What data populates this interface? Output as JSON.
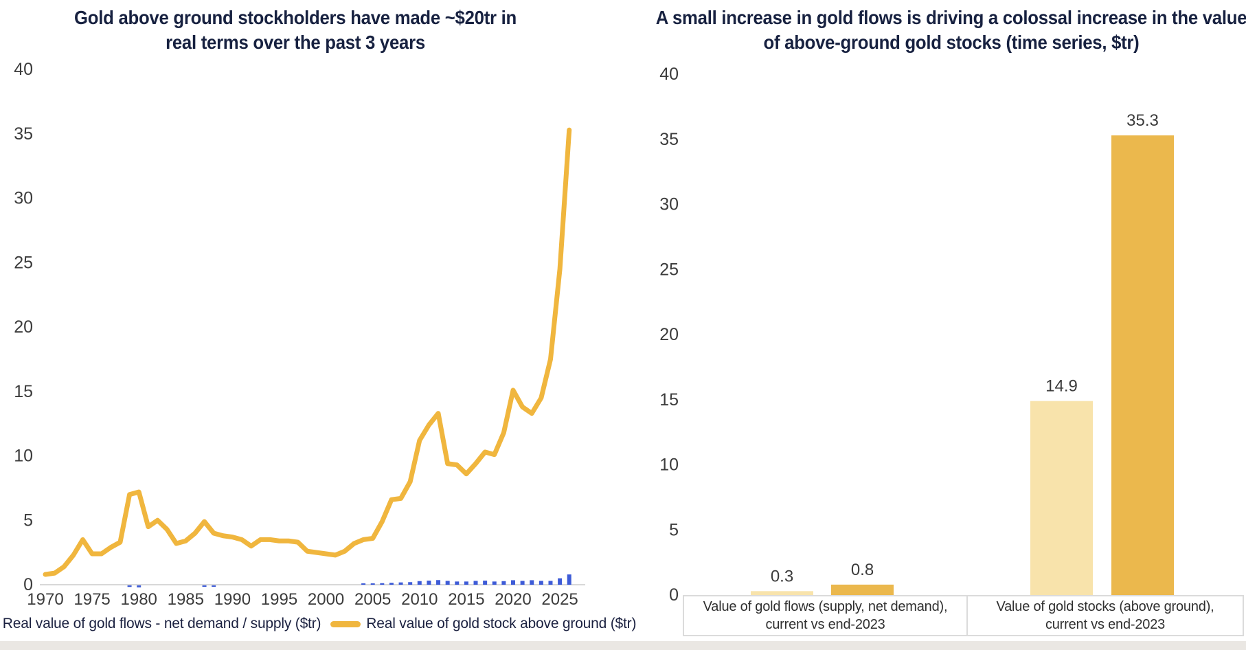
{
  "chart_data": [
    {
      "id": "gold-stock-history",
      "type": "line",
      "title": "Gold above ground stockholders have made ~$20tr in real terms over the past 3 years",
      "xlabel": "",
      "ylabel": "",
      "xlim": [
        1970,
        2027
      ],
      "ylim": [
        0,
        40
      ],
      "yticks": [
        0,
        5,
        10,
        15,
        20,
        25,
        30,
        35,
        40
      ],
      "xticks": [
        1970,
        1975,
        1980,
        1985,
        1990,
        1995,
        2000,
        2005,
        2010,
        2015,
        2020,
        2025
      ],
      "grid": false,
      "legend_position": "bottom",
      "series": [
        {
          "name": "Real value of gold flows - net demand / supply ($tr)",
          "type": "bar",
          "color": "#3d5bd7",
          "points": [
            [
              1979,
              -0.12
            ],
            [
              1980,
              -0.15
            ],
            [
              1987,
              -0.1
            ],
            [
              1988,
              -0.08
            ],
            [
              2004,
              0.08
            ],
            [
              2005,
              0.1
            ],
            [
              2006,
              0.12
            ],
            [
              2007,
              0.15
            ],
            [
              2008,
              0.18
            ],
            [
              2009,
              0.2
            ],
            [
              2010,
              0.28
            ],
            [
              2011,
              0.32
            ],
            [
              2012,
              0.36
            ],
            [
              2013,
              0.3
            ],
            [
              2014,
              0.25
            ],
            [
              2015,
              0.25
            ],
            [
              2016,
              0.3
            ],
            [
              2017,
              0.32
            ],
            [
              2018,
              0.25
            ],
            [
              2019,
              0.28
            ],
            [
              2020,
              0.35
            ],
            [
              2021,
              0.3
            ],
            [
              2022,
              0.35
            ],
            [
              2023,
              0.3
            ],
            [
              2024,
              0.3
            ],
            [
              2025,
              0.5
            ],
            [
              2026,
              0.8
            ]
          ]
        },
        {
          "name": "Real value of gold stock above ground ($tr)",
          "type": "line",
          "color": "#f0b63e",
          "points": [
            [
              1970,
              0.8
            ],
            [
              1971,
              0.9
            ],
            [
              1972,
              1.4
            ],
            [
              1973,
              2.3
            ],
            [
              1974,
              3.5
            ],
            [
              1975,
              2.4
            ],
            [
              1976,
              2.4
            ],
            [
              1977,
              2.9
            ],
            [
              1978,
              3.3
            ],
            [
              1979,
              7.0
            ],
            [
              1980,
              7.2
            ],
            [
              1981,
              4.5
            ],
            [
              1982,
              5.0
            ],
            [
              1983,
              4.3
            ],
            [
              1984,
              3.2
            ],
            [
              1985,
              3.4
            ],
            [
              1986,
              4.0
            ],
            [
              1987,
              4.9
            ],
            [
              1988,
              4.0
            ],
            [
              1989,
              3.8
            ],
            [
              1990,
              3.7
            ],
            [
              1991,
              3.5
            ],
            [
              1992,
              3.0
            ],
            [
              1993,
              3.5
            ],
            [
              1994,
              3.5
            ],
            [
              1995,
              3.4
            ],
            [
              1996,
              3.4
            ],
            [
              1997,
              3.3
            ],
            [
              1998,
              2.6
            ],
            [
              1999,
              2.5
            ],
            [
              2000,
              2.4
            ],
            [
              2001,
              2.3
            ],
            [
              2002,
              2.6
            ],
            [
              2003,
              3.2
            ],
            [
              2004,
              3.5
            ],
            [
              2005,
              3.6
            ],
            [
              2006,
              4.9
            ],
            [
              2007,
              6.6
            ],
            [
              2008,
              6.7
            ],
            [
              2009,
              8.0
            ],
            [
              2010,
              11.2
            ],
            [
              2011,
              12.4
            ],
            [
              2012,
              13.3
            ],
            [
              2013,
              9.4
            ],
            [
              2014,
              9.3
            ],
            [
              2015,
              8.6
            ],
            [
              2016,
              9.4
            ],
            [
              2017,
              10.3
            ],
            [
              2018,
              10.1
            ],
            [
              2019,
              11.8
            ],
            [
              2020,
              15.1
            ],
            [
              2021,
              13.8
            ],
            [
              2022,
              13.3
            ],
            [
              2023,
              14.5
            ],
            [
              2024,
              17.5
            ],
            [
              2025,
              24.5
            ],
            [
              2026,
              35.3
            ]
          ]
        }
      ]
    },
    {
      "id": "gold-flows-vs-stocks",
      "type": "bar",
      "title": "A small increase in gold flows is driving a colossal increase in the value of above-ground gold stocks (time series, $tr)",
      "xlabel": "",
      "ylabel": "",
      "ylim": [
        0,
        40
      ],
      "yticks": [
        0,
        5,
        10,
        15,
        20,
        25,
        30,
        35,
        40
      ],
      "grid": false,
      "shade_colors": {
        "light": "#f8e3ab",
        "dark": "#ebb84d"
      },
      "groups": [
        {
          "label": "Value of gold flows (supply, net demand), current vs end-2023",
          "bars": [
            {
              "shade": "light",
              "value": 0.3,
              "label": "0.3"
            },
            {
              "shade": "dark",
              "value": 0.8,
              "label": "0.8"
            }
          ]
        },
        {
          "label": "Value of gold stocks (above ground), current vs end-2023",
          "bars": [
            {
              "shade": "light",
              "value": 14.9,
              "label": "14.9"
            },
            {
              "shade": "dark",
              "value": 35.3,
              "label": "35.3"
            }
          ]
        }
      ]
    }
  ],
  "style": {
    "title_color": "#172140",
    "axis_text_color": "#3c3c3c",
    "axis_line_color": "#d8d8d8",
    "value_label_color": "#3e3e3e"
  }
}
